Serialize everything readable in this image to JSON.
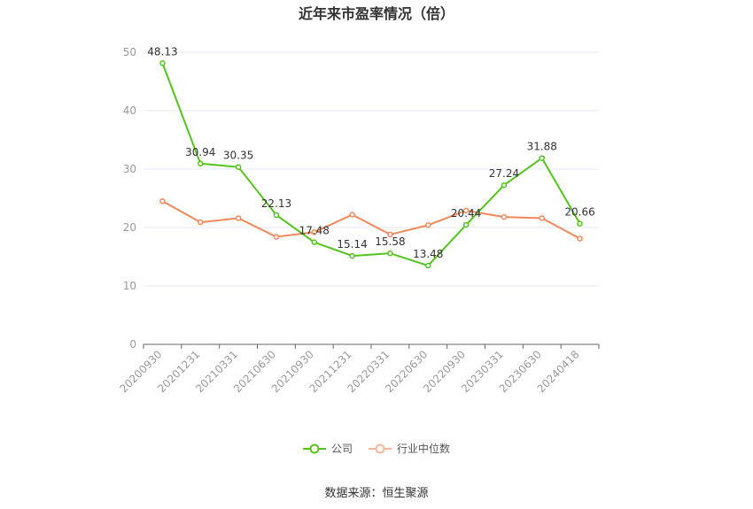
{
  "title": "近年来市盈率情况（倍）",
  "source": "数据来源：恒生聚源",
  "colors": {
    "company": "#52c41a",
    "industry": "#f0885a",
    "grid": "#e6e9f5",
    "axis": "#999999"
  },
  "chart_data": {
    "type": "line",
    "title": "近年来市盈率情况（倍）",
    "xlabel": "",
    "ylabel": "",
    "ylim": [
      0,
      50
    ],
    "yticks": [
      0,
      10,
      20,
      30,
      40,
      50
    ],
    "grid": true,
    "legend_position": "bottom",
    "categories": [
      "20200930",
      "20201231",
      "20210331",
      "20210630",
      "20210930",
      "20211231",
      "20220331",
      "20220630",
      "20220930",
      "20230331",
      "20230630",
      "20240418"
    ],
    "series": [
      {
        "name": "公司",
        "values": [
          48.13,
          30.94,
          30.35,
          22.13,
          17.48,
          15.14,
          15.58,
          13.48,
          20.44,
          27.24,
          31.88,
          20.66
        ],
        "show_labels": true
      },
      {
        "name": "行业中位数",
        "values": [
          24.5,
          20.9,
          21.6,
          18.4,
          19.2,
          22.2,
          18.8,
          20.4,
          22.9,
          21.8,
          21.6,
          18.1
        ],
        "show_labels": false
      }
    ]
  }
}
